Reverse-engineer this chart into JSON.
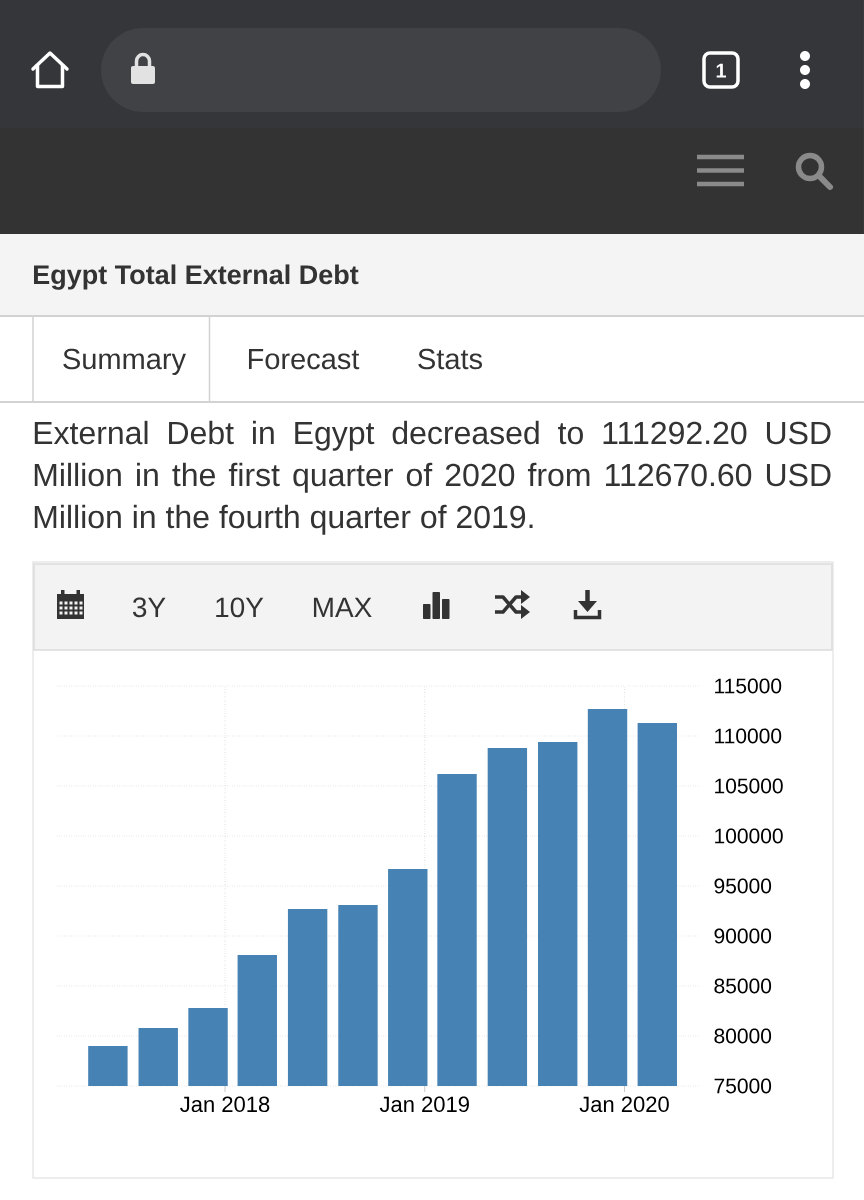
{
  "chart_data": {
    "type": "bar",
    "title": "Egypt Total External Debt",
    "subtitle": "External Debt in Egypt decreased to 111292.20 USD Million in the first quarter of 2020 from 112670.60 USD Million in the fourth quarter of 2019.",
    "annotations": [
      "1",
      "Summary",
      "Forecast",
      "Stats",
      "3Y",
      "10Y",
      "MAX"
    ],
    "x": [
      "2017-06",
      "2017-09",
      "2017-12",
      "2018-03",
      "2018-06",
      "2018-09",
      "2018-12",
      "2019-03",
      "2019-06",
      "2019-09",
      "2019-12",
      "2020-03"
    ],
    "values": [
      79000,
      80800,
      82800,
      88100,
      92700,
      93100,
      96700,
      106200,
      108800,
      109400,
      112700,
      111300
    ],
    "color": "#4682b4",
    "xlim": [
      "2017-02-28",
      "2020-05-18"
    ],
    "xticks": [
      {
        "value": "2018-01",
        "label": "Jan 2018"
      },
      {
        "value": "2019-01",
        "label": "Jan 2019"
      },
      {
        "value": "2020-01",
        "label": "Jan 2020"
      }
    ],
    "ylim": [
      75000,
      115000
    ],
    "yticks": [
      75000,
      80000,
      85000,
      90000,
      95000,
      100000,
      105000,
      110000,
      115000
    ],
    "grid": true
  }
}
